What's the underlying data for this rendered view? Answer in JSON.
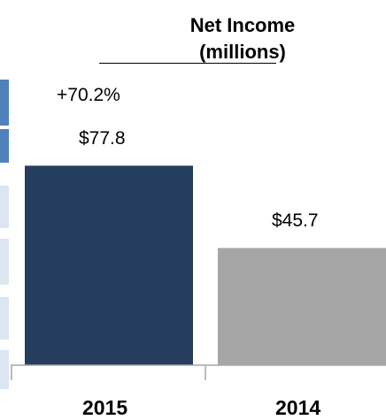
{
  "chart_data": {
    "type": "bar",
    "title_line1": "Net Income",
    "title_line2": "(millions)",
    "categories": [
      "2015",
      "2014"
    ],
    "values": [
      77.8,
      45.7
    ],
    "value_labels": [
      "$77.8",
      "$45.7"
    ],
    "change_label": "+70.2%",
    "colors": [
      "#253d5e",
      "#a6a6a6"
    ],
    "ylim": [
      0,
      100
    ],
    "grid": false,
    "legend": "none"
  },
  "left_panel": {
    "accent_color": "#4f81bd",
    "row_color": "#dce6f1"
  }
}
